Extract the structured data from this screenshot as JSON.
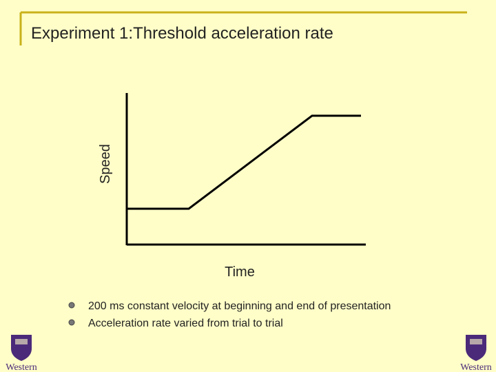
{
  "header": {
    "title": "Experiment 1:Threshold acceleration rate"
  },
  "diagram": {
    "y_label": "Speed",
    "x_label": "Time"
  },
  "bullets": [
    "200 ms constant velocity at beginning and end of presentation",
    "Acceleration rate varied from trial to trial"
  ],
  "logos": [
    {
      "label": "Western"
    },
    {
      "label": "Western"
    }
  ]
}
